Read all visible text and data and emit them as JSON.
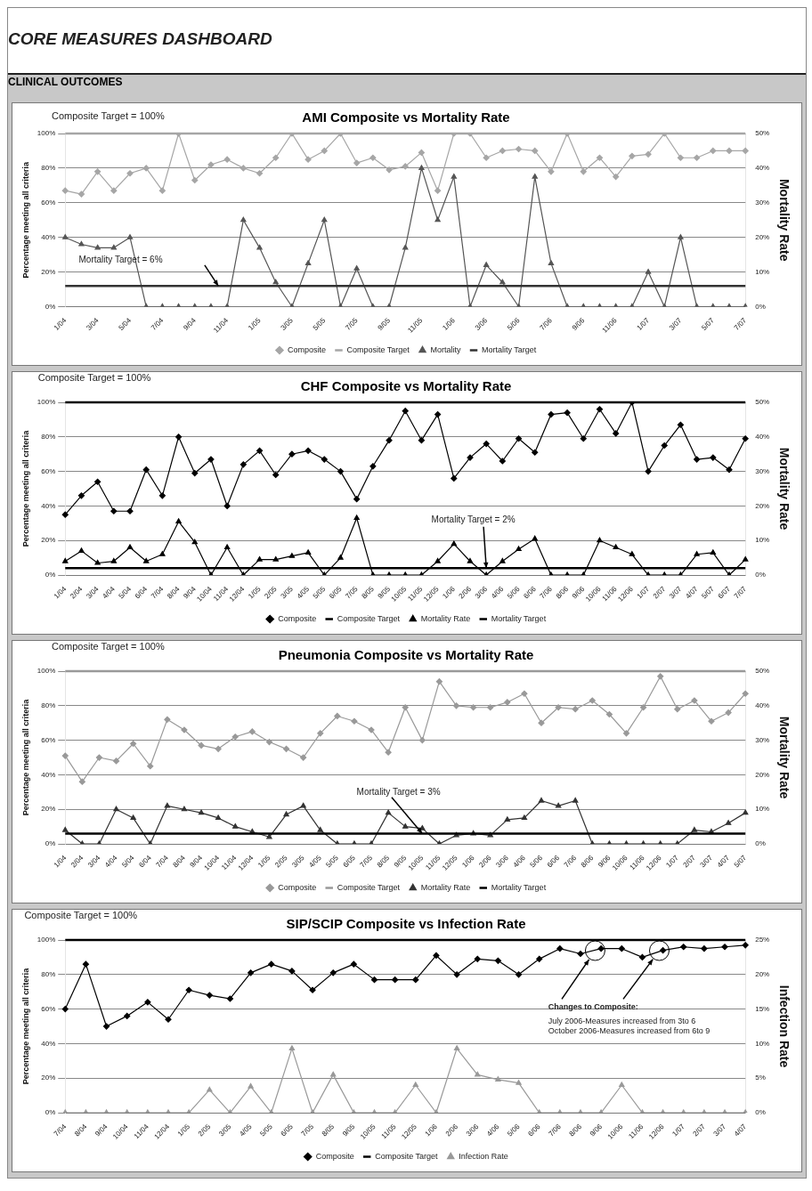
{
  "chart_data": [
    {
      "type": "other",
      "title": "CORE MEASURES DASHBOARD",
      "subtitle": "CLINICAL OUTCOMES"
    },
    {
      "type": "line",
      "title": "AMI Composite vs Mortality Rate",
      "ylabel": "Percentage meeting all criteria",
      "y2label": "Mortality Rate",
      "categories": [
        "1/04",
        null,
        "3/04",
        null,
        "5/04",
        null,
        "7/04",
        null,
        "9/04",
        null,
        "11/04",
        null,
        "1/05",
        null,
        "3/05",
        null,
        "5/05",
        null,
        "7/05",
        null,
        "9/05",
        null,
        "11/05",
        null,
        "1/06",
        null,
        "3/06",
        null,
        "5/06",
        null,
        "7/06",
        null,
        "9/06",
        null,
        "11/06",
        null,
        "1/07",
        null,
        "3/07",
        null,
        "5/07",
        null,
        "7/07"
      ],
      "series": [
        {
          "name": "Composite",
          "color": "#a6a6a6",
          "marker": "diamond",
          "values": [
            67,
            65,
            78,
            67,
            77,
            80,
            67,
            100,
            73,
            82,
            85,
            80,
            77,
            86,
            100,
            85,
            90,
            100,
            83,
            86,
            79,
            81,
            89,
            67,
            100,
            100,
            86,
            90,
            91,
            90,
            78,
            100,
            78,
            86,
            75,
            87,
            88,
            100,
            86,
            86,
            90,
            90,
            90
          ]
        },
        {
          "name": "Mortality",
          "color": "#555555",
          "marker": "triangle",
          "axis": "y2",
          "values": [
            20,
            18,
            17,
            17,
            20,
            0,
            0,
            0,
            0,
            0,
            0,
            25,
            17,
            7,
            0,
            12.5,
            25,
            0,
            11,
            0,
            0,
            17,
            40,
            25,
            37.5,
            0,
            12,
            7,
            0,
            37.5,
            12.5,
            0,
            0,
            0,
            0,
            0,
            10,
            0,
            20,
            0,
            0,
            0,
            0
          ]
        }
      ],
      "ref_lines": [
        {
          "axis": "y",
          "value": 100,
          "label": "Composite Target",
          "color": "#a6a6a6"
        },
        {
          "axis": "y2",
          "value": 6,
          "label": "Mortality Target",
          "color": "#333333"
        }
      ],
      "annotations": [
        "Composite Target = 100%",
        {
          "text": "Mortality Target = 6%",
          "y": 12
        }
      ],
      "ylim": [
        0,
        100
      ],
      "yticks": [
        {
          "value": 0,
          "label": "0%"
        },
        {
          "value": 20,
          "label": "20%"
        },
        {
          "value": 40,
          "label": "40%"
        },
        {
          "value": 60,
          "label": "60%"
        },
        {
          "value": 80,
          "label": "80%"
        },
        {
          "value": 100,
          "label": "100%"
        }
      ],
      "y2lim": [
        0,
        50
      ],
      "y2ticks": [
        {
          "value": 0,
          "label": "0%"
        },
        {
          "value": 10,
          "label": "10%"
        },
        {
          "value": 20,
          "label": "20%"
        },
        {
          "value": 30,
          "label": "30%"
        },
        {
          "value": 40,
          "label": "40%"
        },
        {
          "value": 50,
          "label": "50%"
        }
      ],
      "grid": "y",
      "legend": "bottom"
    },
    {
      "type": "line",
      "title": "CHF Composite vs Mortality Rate",
      "ylabel": "Percentage meeting all criteria",
      "y2label": "Mortality Rate",
      "categories": [
        "1/04",
        "2/04",
        "3/04",
        "4/04",
        "5/04",
        "6/04",
        "7/04",
        "8/04",
        "9/04",
        "10/04",
        "11/04",
        "12/04",
        "1/05",
        "2/05",
        "3/05",
        "4/05",
        "5/05",
        "6/05",
        "7/05",
        "8/05",
        "9/05",
        "10/05",
        "11/05",
        "12/05",
        "1/06",
        "2/06",
        "3/06",
        "4/06",
        "5/06",
        "6/06",
        "7/06",
        "8/06",
        "9/06",
        "10/06",
        "11/06",
        "12/06",
        "1/07",
        "2/07",
        "3/07",
        "4/07",
        "5/07",
        "6/07",
        "7/07"
      ],
      "series": [
        {
          "name": "Composite",
          "color": "#000000",
          "marker": "diamond",
          "values": [
            35,
            46,
            54,
            37,
            37,
            61,
            46,
            80,
            59,
            67,
            40,
            64,
            72,
            58,
            70,
            72,
            67,
            60,
            44,
            63,
            78,
            95,
            78,
            93,
            56,
            68,
            76,
            66,
            79,
            71,
            93,
            94,
            79,
            96,
            82,
            100,
            60,
            75,
            87,
            67,
            68,
            61,
            79
          ]
        },
        {
          "name": "Mortality Rate",
          "color": "#000000",
          "marker": "triangle",
          "axis": "y2",
          "values": [
            4,
            7,
            3.5,
            4,
            8,
            4,
            6,
            15.5,
            9.5,
            0,
            8,
            0,
            4.5,
            4.5,
            5.5,
            6.5,
            0,
            5,
            16.5,
            0,
            0,
            0,
            0,
            4,
            9,
            4,
            0,
            4,
            7.5,
            10.5,
            0,
            0,
            0,
            10,
            8,
            6,
            0,
            0,
            0,
            6,
            6.5,
            0,
            4.5
          ]
        }
      ],
      "ref_lines": [
        {
          "axis": "y",
          "value": 100,
          "label": "Composite Target",
          "color": "#000000"
        },
        {
          "axis": "y2",
          "value": 2,
          "label": "Mortality Target",
          "color": "#000000"
        }
      ],
      "annotations": [
        "Composite Target = 100%",
        {
          "text": "Mortality Target = 2%",
          "x": "3/06",
          "y": 4
        }
      ],
      "ylim": [
        0,
        100
      ],
      "yticks": [
        {
          "value": 0,
          "label": "0%"
        },
        {
          "value": 20,
          "label": "20%"
        },
        {
          "value": 40,
          "label": "40%"
        },
        {
          "value": 60,
          "label": "60%"
        },
        {
          "value": 80,
          "label": "80%"
        },
        {
          "value": 100,
          "label": "100%"
        }
      ],
      "y2lim": [
        0,
        50
      ],
      "y2ticks": [
        {
          "value": 0,
          "label": "0%"
        },
        {
          "value": 10,
          "label": "10%"
        },
        {
          "value": 20,
          "label": "20%"
        },
        {
          "value": 30,
          "label": "30%"
        },
        {
          "value": 40,
          "label": "40%"
        },
        {
          "value": 50,
          "label": "50%"
        }
      ],
      "grid": "y",
      "legend": "bottom"
    },
    {
      "type": "line",
      "title": "Pneumonia Composite vs Mortality Rate",
      "ylabel": "Percentage meeting all criteria",
      "y2label": "Mortality Rate",
      "categories": [
        "1/04",
        "2/04",
        "3/04",
        "4/04",
        "5/04",
        "6/04",
        "7/04",
        "8/04",
        "9/04",
        "10/04",
        "11/04",
        "12/04",
        "1/05",
        "2/05",
        "3/05",
        "4/05",
        "5/05",
        "6/05",
        "7/05",
        "8/05",
        "9/05",
        "10/05",
        "11/05",
        "12/05",
        "1/06",
        "2/06",
        "3/06",
        "4/06",
        "5/06",
        "6/06",
        "7/06",
        "8/06",
        "9/06",
        "10/06",
        "11/06",
        "12/06",
        "1/07",
        "2/07",
        "3/07",
        "4/07",
        "5/07"
      ],
      "series": [
        {
          "name": "Composite",
          "color": "#999999",
          "marker": "diamond",
          "values": [
            51,
            36,
            50,
            48,
            58,
            45,
            72,
            66,
            57,
            55,
            62,
            65,
            59,
            55,
            50,
            64,
            74,
            71,
            66,
            53,
            79,
            60,
            94,
            80,
            79,
            79,
            82,
            87,
            70,
            79,
            78,
            83,
            75,
            64,
            79,
            97,
            78,
            83,
            71,
            76,
            87
          ]
        },
        {
          "name": "Mortality Rate",
          "color": "#333333",
          "marker": "triangle",
          "axis": "y2",
          "values": [
            4,
            0,
            0,
            10,
            7.5,
            0,
            11,
            10,
            9,
            7.5,
            5,
            3.5,
            2,
            8.5,
            11,
            4,
            0,
            0,
            0,
            9,
            5,
            4.5,
            0,
            2.5,
            3,
            2.5,
            7,
            7.5,
            12.5,
            11,
            12.5,
            0,
            0,
            0,
            0,
            0,
            0,
            4,
            3.5,
            6,
            9
          ]
        }
      ],
      "ref_lines": [
        {
          "axis": "y",
          "value": 100,
          "label": "Composite Target",
          "color": "#999999"
        },
        {
          "axis": "y2",
          "value": 3,
          "label": "Mortality Target",
          "color": "#000000"
        }
      ],
      "annotations": [
        "Composite Target = 100%",
        {
          "text": "Mortality Target = 3%",
          "x": "10/05",
          "y": 6
        }
      ],
      "ylim": [
        0,
        100
      ],
      "yticks": [
        {
          "value": 0,
          "label": "0%"
        },
        {
          "value": 20,
          "label": "20%"
        },
        {
          "value": 40,
          "label": "40%"
        },
        {
          "value": 60,
          "label": "60%"
        },
        {
          "value": 80,
          "label": "80%"
        },
        {
          "value": 100,
          "label": "100%"
        }
      ],
      "y2lim": [
        0,
        50
      ],
      "y2ticks": [
        {
          "value": 0,
          "label": "0%"
        },
        {
          "value": 10,
          "label": "10%"
        },
        {
          "value": 20,
          "label": "20%"
        },
        {
          "value": 30,
          "label": "30%"
        },
        {
          "value": 40,
          "label": "40%"
        },
        {
          "value": 50,
          "label": "50%"
        }
      ],
      "grid": "y",
      "legend": "bottom"
    },
    {
      "type": "line",
      "title": "SIP/SCIP Composite vs Infection Rate",
      "ylabel": "Percentage meeting all criteria",
      "y2label": "Infection Rate",
      "categories": [
        "7/04",
        "8/04",
        "9/04",
        "10/04",
        "11/04",
        "12/04",
        "1/05",
        "2/05",
        "3/05",
        "4/05",
        "5/05",
        "6/05",
        "7/05",
        "8/05",
        "9/05",
        "10/05",
        "11/05",
        "12/05",
        "1/06",
        "2/06",
        "3/06",
        "4/06",
        "5/06",
        "6/06",
        "7/06",
        "8/06",
        "9/06",
        "10/06",
        "11/06",
        "12/06",
        "1/07",
        "2/07",
        "3/07",
        "4/07"
      ],
      "series": [
        {
          "name": "Composite",
          "color": "#000000",
          "marker": "diamond",
          "values": [
            60,
            86,
            50,
            56,
            64,
            54,
            71,
            68,
            66,
            81,
            86,
            82,
            71,
            81,
            86,
            77,
            77,
            77,
            91,
            80,
            89,
            88,
            80,
            89,
            95,
            92,
            95,
            95,
            90,
            94,
            96,
            95,
            96,
            97
          ]
        },
        {
          "name": "Infection Rate",
          "color": "#999999",
          "marker": "triangle",
          "axis": "y2",
          "values": [
            0,
            0,
            0,
            0,
            0,
            0,
            0,
            3.3,
            0,
            3.8,
            0,
            9.3,
            0,
            5.5,
            0,
            0,
            0,
            4,
            0,
            9.3,
            5.5,
            4.8,
            4.3,
            0,
            0,
            0,
            0,
            4,
            0,
            0,
            0,
            0,
            0,
            0
          ]
        }
      ],
      "ref_lines": [
        {
          "axis": "y",
          "value": 100,
          "label": "Composite Target",
          "color": "#000000"
        }
      ],
      "annotations": [
        "Composite Target = 100%",
        "Changes to Composite:",
        "July 2006-Measures increased from 3to 6",
        "October 2006-Measures increased from 6to 9"
      ],
      "ylim": [
        0,
        100
      ],
      "yticks": [
        {
          "value": 0,
          "label": "0%"
        },
        {
          "value": 20,
          "label": "20%"
        },
        {
          "value": 40,
          "label": "40%"
        },
        {
          "value": 60,
          "label": "60%"
        },
        {
          "value": 80,
          "label": "80%"
        },
        {
          "value": 100,
          "label": "100%"
        }
      ],
      "y2lim": [
        0,
        25
      ],
      "y2ticks": [
        {
          "value": 0,
          "label": "0%"
        },
        {
          "value": 5,
          "label": "5%"
        },
        {
          "value": 10,
          "label": "10%"
        },
        {
          "value": 15,
          "label": "15%"
        },
        {
          "value": 20,
          "label": "20%"
        },
        {
          "value": 25,
          "label": "25%"
        }
      ],
      "grid": "y",
      "legend": "bottom"
    }
  ]
}
